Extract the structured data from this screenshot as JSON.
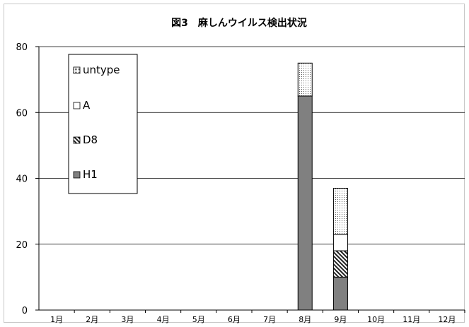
{
  "chart_data": {
    "type": "bar",
    "stacked": true,
    "title": "図3　麻しんウイルス検出状況",
    "categories": [
      "1月",
      "2月",
      "3月",
      "4月",
      "5月",
      "6月",
      "7月",
      "8月",
      "9月",
      "10月",
      "11月",
      "12月"
    ],
    "series": [
      {
        "name": "H1",
        "values": [
          0,
          0,
          0,
          0,
          0,
          0,
          0,
          65,
          10,
          0,
          0,
          0
        ],
        "color": "#808080",
        "pattern": "solid"
      },
      {
        "name": "D8",
        "values": [
          0,
          0,
          0,
          0,
          0,
          0,
          0,
          0,
          8,
          0,
          0,
          0
        ],
        "color": "#000000",
        "pattern": "diagonal-hatch"
      },
      {
        "name": "A",
        "values": [
          0,
          0,
          0,
          0,
          0,
          0,
          0,
          0,
          5,
          0,
          0,
          0
        ],
        "color": "#ffffff",
        "pattern": "white"
      },
      {
        "name": "untype",
        "values": [
          0,
          0,
          0,
          0,
          0,
          0,
          0,
          10,
          14,
          0,
          0,
          0
        ],
        "color": "#000000",
        "pattern": "dots"
      }
    ],
    "ylim": [
      0,
      80
    ],
    "yticks": [
      0,
      20,
      40,
      60,
      80
    ],
    "grid": true,
    "legend_position": "top-left",
    "legend_order": [
      "untype",
      "A",
      "D8",
      "H1"
    ]
  }
}
